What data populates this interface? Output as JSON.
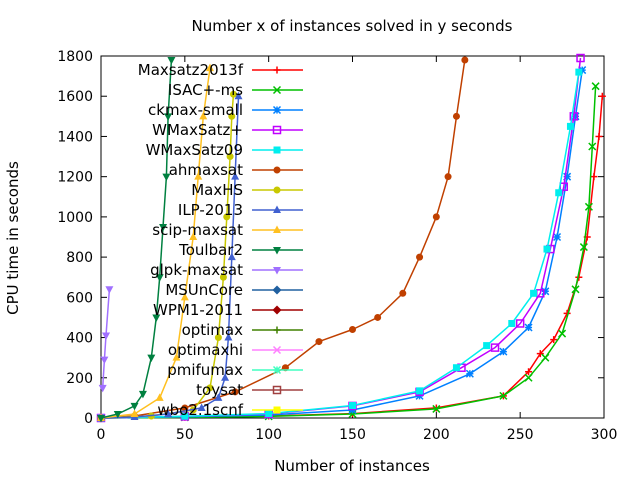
{
  "chart_data": {
    "type": "line",
    "title": "Number x of instances solved in y seconds",
    "xlabel": "Number of instances",
    "ylabel": "CPU time in seconds",
    "xlim": [
      0,
      300
    ],
    "ylim": [
      0,
      1800
    ],
    "xticks": [
      0,
      50,
      100,
      150,
      200,
      250,
      300
    ],
    "yticks": [
      0,
      200,
      400,
      600,
      800,
      1000,
      1200,
      1400,
      1600,
      1800
    ],
    "grid": false,
    "legend_position": "top-right",
    "series": [
      {
        "name": "Maxsatz2013f",
        "color": "#ff0000",
        "marker": "plus",
        "points": [
          [
            0,
            0
          ],
          [
            50,
            4
          ],
          [
            100,
            10
          ],
          [
            150,
            22
          ],
          [
            200,
            50
          ],
          [
            240,
            110
          ],
          [
            255,
            230
          ],
          [
            262,
            320
          ],
          [
            270,
            390
          ],
          [
            278,
            520
          ],
          [
            285,
            700
          ],
          [
            290,
            900
          ],
          [
            294,
            1200
          ],
          [
            297,
            1400
          ],
          [
            299,
            1600
          ]
        ]
      },
      {
        "name": "ISAC+-ms",
        "color": "#00c000",
        "marker": "cross",
        "points": [
          [
            0,
            0
          ],
          [
            50,
            3
          ],
          [
            100,
            8
          ],
          [
            150,
            20
          ],
          [
            200,
            45
          ],
          [
            240,
            110
          ],
          [
            255,
            200
          ],
          [
            265,
            300
          ],
          [
            275,
            420
          ],
          [
            283,
            640
          ],
          [
            288,
            850
          ],
          [
            291,
            1050
          ],
          [
            293,
            1350
          ],
          [
            295,
            1650
          ]
        ]
      },
      {
        "name": "ckmax-small",
        "color": "#0080ff",
        "marker": "star",
        "points": [
          [
            0,
            0
          ],
          [
            50,
            6
          ],
          [
            100,
            15
          ],
          [
            150,
            40
          ],
          [
            190,
            110
          ],
          [
            220,
            220
          ],
          [
            240,
            330
          ],
          [
            255,
            450
          ],
          [
            265,
            630
          ],
          [
            272,
            900
          ],
          [
            278,
            1200
          ],
          [
            283,
            1500
          ],
          [
            287,
            1730
          ]
        ]
      },
      {
        "name": "WMaxSatz+",
        "color": "#c000ff",
        "marker": "box",
        "points": [
          [
            0,
            0
          ],
          [
            50,
            8
          ],
          [
            100,
            20
          ],
          [
            150,
            60
          ],
          [
            190,
            130
          ],
          [
            215,
            250
          ],
          [
            235,
            350
          ],
          [
            250,
            470
          ],
          [
            262,
            620
          ],
          [
            268,
            840
          ],
          [
            276,
            1150
          ],
          [
            282,
            1500
          ],
          [
            286,
            1790
          ]
        ]
      },
      {
        "name": "WMaxSatz09",
        "color": "#00eeee",
        "marker": "fbox",
        "points": [
          [
            0,
            0
          ],
          [
            50,
            9
          ],
          [
            100,
            22
          ],
          [
            150,
            62
          ],
          [
            190,
            135
          ],
          [
            212,
            250
          ],
          [
            230,
            360
          ],
          [
            245,
            470
          ],
          [
            258,
            620
          ],
          [
            266,
            840
          ],
          [
            273,
            1120
          ],
          [
            280,
            1450
          ],
          [
            285,
            1720
          ]
        ]
      },
      {
        "name": "ahmaxsat",
        "color": "#c04000",
        "marker": "fcircle",
        "points": [
          [
            0,
            0
          ],
          [
            20,
            10
          ],
          [
            50,
            50
          ],
          [
            80,
            130
          ],
          [
            110,
            250
          ],
          [
            130,
            380
          ],
          [
            150,
            440
          ],
          [
            165,
            500
          ],
          [
            180,
            620
          ],
          [
            190,
            800
          ],
          [
            200,
            1000
          ],
          [
            207,
            1200
          ],
          [
            212,
            1500
          ],
          [
            217,
            1780
          ]
        ]
      },
      {
        "name": "MaxHS",
        "color": "#c8c800",
        "marker": "fcircle",
        "points": [
          [
            0,
            0
          ],
          [
            30,
            10
          ],
          [
            55,
            40
          ],
          [
            65,
            150
          ],
          [
            70,
            400
          ],
          [
            73,
            700
          ],
          [
            75,
            1000
          ],
          [
            77,
            1300
          ],
          [
            78,
            1500
          ],
          [
            79,
            1610
          ]
        ]
      },
      {
        "name": "ILP-2013",
        "color": "#4060d0",
        "marker": "ftriangle",
        "points": [
          [
            0,
            0
          ],
          [
            20,
            5
          ],
          [
            40,
            20
          ],
          [
            60,
            50
          ],
          [
            70,
            100
          ],
          [
            74,
            200
          ],
          [
            76,
            400
          ],
          [
            78,
            800
          ],
          [
            80,
            1200
          ],
          [
            82,
            1600
          ]
        ]
      },
      {
        "name": "scip-maxsat",
        "color": "#ffc020",
        "marker": "ftriangle",
        "points": [
          [
            0,
            0
          ],
          [
            20,
            20
          ],
          [
            35,
            100
          ],
          [
            45,
            300
          ],
          [
            50,
            600
          ],
          [
            55,
            900
          ],
          [
            58,
            1200
          ],
          [
            61,
            1500
          ],
          [
            65,
            1740
          ]
        ]
      },
      {
        "name": "Toulbar2",
        "color": "#008040",
        "marker": "finvtriangle",
        "points": [
          [
            0,
            0
          ],
          [
            10,
            20
          ],
          [
            20,
            60
          ],
          [
            25,
            120
          ],
          [
            30,
            300
          ],
          [
            33,
            500
          ],
          [
            35,
            700
          ],
          [
            37,
            950
          ],
          [
            39,
            1200
          ],
          [
            40,
            1500
          ],
          [
            42,
            1780
          ]
        ]
      },
      {
        "name": "glpk-maxsat",
        "color": "#a070ff",
        "marker": "finvtriangle",
        "points": [
          [
            1,
            150
          ],
          [
            2,
            290
          ],
          [
            3,
            410
          ],
          [
            5,
            640
          ]
        ]
      },
      {
        "name": "MSUnCore",
        "color": "#2060a0",
        "marker": "fdiamond",
        "points": []
      },
      {
        "name": "WPM1-2011",
        "color": "#a00000",
        "marker": "fdiamond",
        "points": []
      },
      {
        "name": "optimax",
        "color": "#408000",
        "marker": "plus",
        "points": []
      },
      {
        "name": "optimaxhi",
        "color": "#ff80ff",
        "marker": "cross",
        "points": []
      },
      {
        "name": "pmifumax",
        "color": "#40ffc0",
        "marker": "star",
        "points": []
      },
      {
        "name": "toysat",
        "color": "#a04040",
        "marker": "box",
        "points": []
      },
      {
        "name": "wbo2.1scnf",
        "color": "#ffff00",
        "marker": "fbox",
        "points": []
      }
    ]
  }
}
